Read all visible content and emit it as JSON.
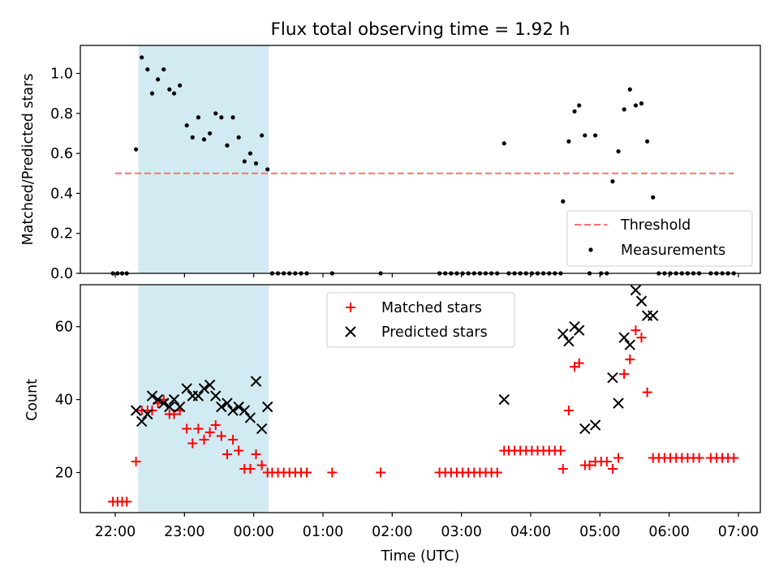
{
  "title": "Flux total observing time = 1.92 h",
  "colors": {
    "threshold": "#ff7070",
    "measurement": "#000000",
    "matched": "#ff0000",
    "predicted": "#000000",
    "shade": "#add8e6"
  },
  "chart_data": [
    {
      "type": "scatter",
      "ylabel": "Matched/Predicted stars",
      "ylim": [
        0,
        1.14
      ],
      "yticks": [
        0.0,
        0.2,
        0.4,
        0.6,
        0.8,
        1.0
      ],
      "ytick_labels": [
        "0.0",
        "0.2",
        "0.4",
        "0.6",
        "0.8",
        "1.0"
      ],
      "shaded_interval": [
        "22:20",
        "00:13"
      ],
      "threshold": {
        "y": 0.5,
        "x_range": [
          "22:00",
          "06:56"
        ]
      },
      "legend": {
        "position": "lower-right",
        "entries": [
          "Threshold",
          "Measurements"
        ]
      },
      "series": [
        {
          "name": "Measurements",
          "marker": "dot",
          "points": [
            [
              "21:58",
              0
            ],
            [
              "22:02",
              0
            ],
            [
              "22:06",
              0
            ],
            [
              "22:10",
              0
            ],
            [
              "22:18",
              0.62
            ],
            [
              "22:23",
              1.08
            ],
            [
              "22:28",
              1.02
            ],
            [
              "22:32",
              0.9
            ],
            [
              "22:37",
              0.97
            ],
            [
              "22:42",
              1.02
            ],
            [
              "22:47",
              0.92
            ],
            [
              "22:51",
              0.9
            ],
            [
              "22:56",
              0.94
            ],
            [
              "23:02",
              0.74
            ],
            [
              "23:07",
              0.68
            ],
            [
              "23:12",
              0.78
            ],
            [
              "23:17",
              0.67
            ],
            [
              "23:22",
              0.7
            ],
            [
              "23:27",
              0.8
            ],
            [
              "23:32",
              0.78
            ],
            [
              "23:37",
              0.64
            ],
            [
              "23:42",
              0.78
            ],
            [
              "23:47",
              0.68
            ],
            [
              "23:52",
              0.56
            ],
            [
              "23:57",
              0.6
            ],
            [
              "00:02",
              0.55
            ],
            [
              "00:07",
              0.69
            ],
            [
              "00:12",
              0.52
            ],
            [
              "00:16",
              0
            ],
            [
              "00:21",
              0
            ],
            [
              "00:26",
              0
            ],
            [
              "00:31",
              0
            ],
            [
              "00:36",
              0
            ],
            [
              "00:41",
              0
            ],
            [
              "00:46",
              0
            ],
            [
              "01:08",
              0
            ],
            [
              "01:50",
              0
            ],
            [
              "02:41",
              0
            ],
            [
              "02:46",
              0
            ],
            [
              "02:51",
              0
            ],
            [
              "02:56",
              0
            ],
            [
              "03:01",
              0
            ],
            [
              "03:06",
              0
            ],
            [
              "03:11",
              0
            ],
            [
              "03:16",
              0
            ],
            [
              "03:21",
              0
            ],
            [
              "03:26",
              0
            ],
            [
              "03:31",
              0
            ],
            [
              "03:37",
              0.65
            ],
            [
              "03:41",
              0
            ],
            [
              "03:46",
              0
            ],
            [
              "03:51",
              0
            ],
            [
              "03:56",
              0
            ],
            [
              "04:01",
              0
            ],
            [
              "04:06",
              0
            ],
            [
              "04:11",
              0
            ],
            [
              "04:16",
              0
            ],
            [
              "04:21",
              0
            ],
            [
              "04:26",
              0
            ],
            [
              "04:28",
              0.36
            ],
            [
              "04:33",
              0.66
            ],
            [
              "04:38",
              0.81
            ],
            [
              "04:42",
              0.84
            ],
            [
              "04:47",
              0.69
            ],
            [
              "04:51",
              0
            ],
            [
              "04:56",
              0.69
            ],
            [
              "05:01",
              0
            ],
            [
              "05:06",
              0
            ],
            [
              "05:11",
              0.46
            ],
            [
              "05:16",
              0.61
            ],
            [
              "05:21",
              0.82
            ],
            [
              "05:26",
              0.92
            ],
            [
              "05:31",
              0.84
            ],
            [
              "05:36",
              0.85
            ],
            [
              "05:41",
              0.66
            ],
            [
              "05:46",
              0.38
            ],
            [
              "05:51",
              0
            ],
            [
              "05:56",
              0
            ],
            [
              "06:01",
              0
            ],
            [
              "06:06",
              0
            ],
            [
              "06:11",
              0
            ],
            [
              "06:16",
              0
            ],
            [
              "06:21",
              0
            ],
            [
              "06:26",
              0
            ],
            [
              "06:36",
              0
            ],
            [
              "06:41",
              0
            ],
            [
              "06:46",
              0
            ],
            [
              "06:51",
              0
            ],
            [
              "06:56",
              0
            ]
          ]
        }
      ]
    },
    {
      "type": "scatter",
      "xlabel": "Time (UTC)",
      "ylabel": "Count",
      "ylim": [
        9,
        71.5
      ],
      "yticks": [
        20,
        40,
        60
      ],
      "ytick_labels": [
        "20",
        "40",
        "60"
      ],
      "xticks": [
        "22:00",
        "23:00",
        "00:00",
        "01:00",
        "02:00",
        "03:00",
        "04:00",
        "05:00",
        "06:00",
        "07:00"
      ],
      "shaded_interval": [
        "22:20",
        "00:13"
      ],
      "legend": {
        "position": "upper-center",
        "entries": [
          "Matched stars",
          "Predicted stars"
        ]
      },
      "series": [
        {
          "name": "Matched stars",
          "marker": "plus",
          "points": [
            [
              "21:58",
              12
            ],
            [
              "22:02",
              12
            ],
            [
              "22:06",
              12
            ],
            [
              "22:10",
              12
            ],
            [
              "22:18",
              23
            ],
            [
              "22:23",
              37
            ],
            [
              "22:28",
              37
            ],
            [
              "22:32",
              37
            ],
            [
              "22:37",
              39
            ],
            [
              "22:42",
              40
            ],
            [
              "22:47",
              36
            ],
            [
              "22:51",
              36
            ],
            [
              "22:56",
              37
            ],
            [
              "23:02",
              32
            ],
            [
              "23:07",
              28
            ],
            [
              "23:12",
              32
            ],
            [
              "23:17",
              29
            ],
            [
              "23:22",
              31
            ],
            [
              "23:27",
              33
            ],
            [
              "23:32",
              30
            ],
            [
              "23:37",
              25
            ],
            [
              "23:42",
              29
            ],
            [
              "23:47",
              26
            ],
            [
              "23:52",
              21
            ],
            [
              "23:57",
              21
            ],
            [
              "00:02",
              25
            ],
            [
              "00:07",
              22
            ],
            [
              "00:12",
              20
            ],
            [
              "00:16",
              20
            ],
            [
              "00:21",
              20
            ],
            [
              "00:26",
              20
            ],
            [
              "00:31",
              20
            ],
            [
              "00:36",
              20
            ],
            [
              "00:41",
              20
            ],
            [
              "00:46",
              20
            ],
            [
              "01:08",
              20
            ],
            [
              "01:50",
              20
            ],
            [
              "02:41",
              20
            ],
            [
              "02:46",
              20
            ],
            [
              "02:51",
              20
            ],
            [
              "02:56",
              20
            ],
            [
              "03:01",
              20
            ],
            [
              "03:06",
              20
            ],
            [
              "03:11",
              20
            ],
            [
              "03:16",
              20
            ],
            [
              "03:21",
              20
            ],
            [
              "03:26",
              20
            ],
            [
              "03:31",
              20
            ],
            [
              "03:37",
              26
            ],
            [
              "03:41",
              26
            ],
            [
              "03:46",
              26
            ],
            [
              "03:51",
              26
            ],
            [
              "03:56",
              26
            ],
            [
              "04:01",
              26
            ],
            [
              "04:06",
              26
            ],
            [
              "04:11",
              26
            ],
            [
              "04:16",
              26
            ],
            [
              "04:21",
              26
            ],
            [
              "04:26",
              26
            ],
            [
              "04:28",
              21
            ],
            [
              "04:33",
              37
            ],
            [
              "04:38",
              49
            ],
            [
              "04:42",
              50
            ],
            [
              "04:47",
              22
            ],
            [
              "04:51",
              22
            ],
            [
              "04:56",
              23
            ],
            [
              "05:01",
              23
            ],
            [
              "05:06",
              23
            ],
            [
              "05:11",
              21
            ],
            [
              "05:16",
              24
            ],
            [
              "05:21",
              47
            ],
            [
              "05:26",
              51
            ],
            [
              "05:31",
              59
            ],
            [
              "05:36",
              57
            ],
            [
              "05:41",
              42
            ],
            [
              "05:46",
              24
            ],
            [
              "05:51",
              24
            ],
            [
              "05:56",
              24
            ],
            [
              "06:01",
              24
            ],
            [
              "06:06",
              24
            ],
            [
              "06:11",
              24
            ],
            [
              "06:16",
              24
            ],
            [
              "06:21",
              24
            ],
            [
              "06:26",
              24
            ],
            [
              "06:36",
              24
            ],
            [
              "06:41",
              24
            ],
            [
              "06:46",
              24
            ],
            [
              "06:51",
              24
            ],
            [
              "06:56",
              24
            ]
          ]
        },
        {
          "name": "Predicted stars",
          "marker": "x",
          "points": [
            [
              "22:18",
              37
            ],
            [
              "22:23",
              34
            ],
            [
              "22:28",
              36
            ],
            [
              "22:32",
              41
            ],
            [
              "22:37",
              40
            ],
            [
              "22:42",
              39
            ],
            [
              "22:47",
              38
            ],
            [
              "22:51",
              40
            ],
            [
              "22:56",
              38
            ],
            [
              "23:02",
              43
            ],
            [
              "23:07",
              41
            ],
            [
              "23:12",
              41
            ],
            [
              "23:17",
              43
            ],
            [
              "23:22",
              44
            ],
            [
              "23:27",
              41
            ],
            [
              "23:32",
              38
            ],
            [
              "23:37",
              39
            ],
            [
              "23:42",
              37
            ],
            [
              "23:47",
              38
            ],
            [
              "23:52",
              37
            ],
            [
              "23:57",
              35
            ],
            [
              "00:02",
              45
            ],
            [
              "00:07",
              32
            ],
            [
              "00:12",
              38
            ],
            [
              "03:37",
              40
            ],
            [
              "04:28",
              58
            ],
            [
              "04:33",
              56
            ],
            [
              "04:38",
              60
            ],
            [
              "04:42",
              59
            ],
            [
              "04:47",
              32
            ],
            [
              "04:56",
              33
            ],
            [
              "05:11",
              46
            ],
            [
              "05:16",
              39
            ],
            [
              "05:21",
              57
            ],
            [
              "05:26",
              55
            ],
            [
              "05:31",
              70
            ],
            [
              "05:36",
              67
            ],
            [
              "05:41",
              63
            ],
            [
              "05:46",
              63
            ]
          ]
        }
      ]
    }
  ]
}
